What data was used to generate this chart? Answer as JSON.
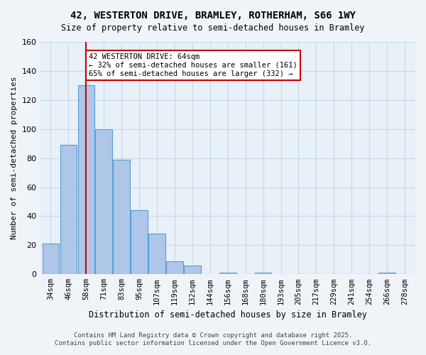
{
  "title_line1": "42, WESTERTON DRIVE, BRAMLEY, ROTHERHAM, S66 1WY",
  "title_line2": "Size of property relative to semi-detached houses in Bramley",
  "xlabel": "Distribution of semi-detached houses by size in Bramley",
  "ylabel": "Number of semi-detached properties",
  "categories": [
    "34sqm",
    "46sqm",
    "58sqm",
    "71sqm",
    "83sqm",
    "95sqm",
    "107sqm",
    "119sqm",
    "132sqm",
    "144sqm",
    "156sqm",
    "168sqm",
    "180sqm",
    "193sqm",
    "205sqm",
    "217sqm",
    "229sqm",
    "241sqm",
    "254sqm",
    "266sqm",
    "278sqm"
  ],
  "values": [
    21,
    89,
    130,
    100,
    79,
    44,
    28,
    9,
    6,
    0,
    1,
    0,
    1,
    0,
    0,
    0,
    0,
    0,
    0,
    1,
    0
  ],
  "bar_color": "#aec6e8",
  "bar_edge_color": "#5a9fd4",
  "property_size": 64,
  "property_bin_index": 2,
  "vline_x": 2,
  "annotation_text": "42 WESTERTON DRIVE: 64sqm\n← 32% of semi-detached houses are smaller (161)\n65% of semi-detached houses are larger (332) →",
  "annotation_box_color": "#ffffff",
  "annotation_box_edge": "#cc0000",
  "vline_color": "#cc0000",
  "ylim": [
    0,
    160
  ],
  "yticks": [
    0,
    20,
    40,
    60,
    80,
    100,
    120,
    140,
    160
  ],
  "grid_color": "#c8d8e8",
  "background_color": "#e8f0f8",
  "footer_line1": "Contains HM Land Registry data © Crown copyright and database right 2025.",
  "footer_line2": "Contains public sector information licensed under the Open Government Licence v3.0."
}
